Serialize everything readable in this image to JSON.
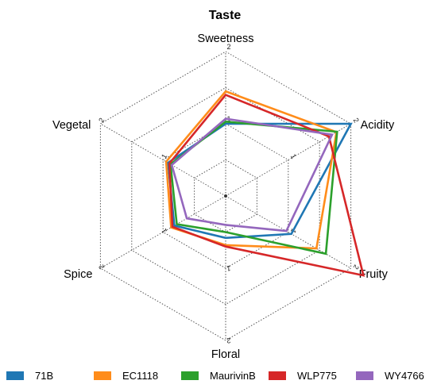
{
  "chart_data": {
    "type": "radar",
    "title": "Taste",
    "axes": [
      "Sweetness",
      "Acidity",
      "Fruity",
      "Floral",
      "Spice",
      "Vegetal"
    ],
    "range": [
      0,
      2
    ],
    "tick_values": [
      1,
      2
    ],
    "tick_labels": [
      "1",
      "2"
    ],
    "grid": true,
    "legend_position": "bottom",
    "series": [
      {
        "name": "71B",
        "color": "#1f77b4",
        "values": [
          1.0,
          2.0,
          1.05,
          0.58,
          0.82,
          0.92
        ]
      },
      {
        "name": "EC1118",
        "color": "#ff8c1a",
        "values": [
          1.45,
          1.77,
          1.45,
          0.68,
          0.87,
          0.95
        ]
      },
      {
        "name": "MaurivinB",
        "color": "#2ca02c",
        "values": [
          1.03,
          1.78,
          1.6,
          0.5,
          0.78,
          0.88
        ]
      },
      {
        "name": "WLP775",
        "color": "#d62728",
        "values": [
          1.4,
          1.65,
          2.2,
          0.7,
          0.85,
          0.9
        ]
      },
      {
        "name": "WY4766",
        "color": "#9467bd",
        "values": [
          1.07,
          1.7,
          0.97,
          0.4,
          0.62,
          0.86
        ]
      }
    ]
  }
}
